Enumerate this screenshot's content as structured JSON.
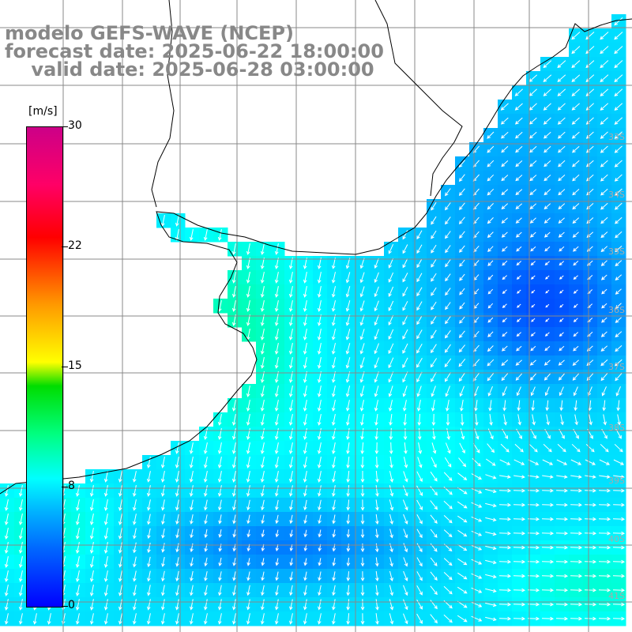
{
  "header": {
    "line1": "modelo GEFS-WAVE (NCEP)",
    "line2": "forecast date: 2025-06-22 18:00:00",
    "line3": "    valid date: 2025-06-28 03:00:00"
  },
  "colorbar": {
    "unit": "[m/s]",
    "ticks": [
      "30",
      "22",
      "15",
      "8",
      "0"
    ],
    "colors": [
      "#0000ff",
      "#00ffff",
      "#00dd00",
      "#ffff00",
      "#ff0000",
      "#cc0088"
    ]
  },
  "lat_labels": [
    "33S",
    "34S",
    "35S",
    "36S",
    "37S",
    "38S",
    "39S",
    "40S",
    "41S"
  ],
  "colors": {
    "grid": "#888888",
    "coast": "#000000",
    "arrow": "#ffffff",
    "land": "#ffffff"
  }
}
